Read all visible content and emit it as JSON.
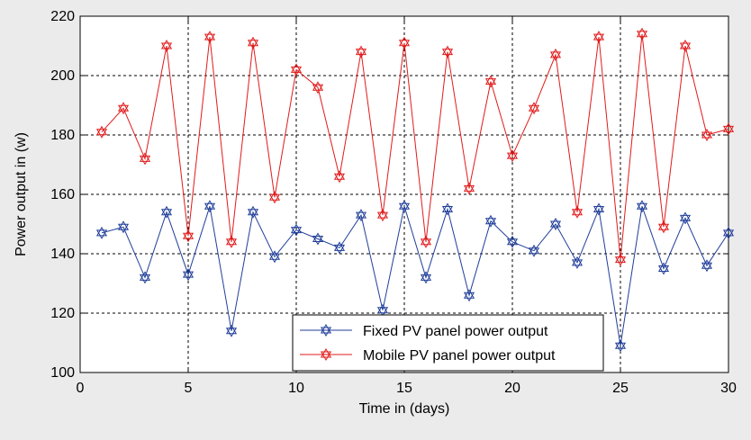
{
  "chart_data": {
    "type": "line",
    "xlabel": "Time in (days)",
    "ylabel": "Power output in (w)",
    "xlim": [
      0,
      30
    ],
    "ylim": [
      100,
      220
    ],
    "xticks": [
      0,
      5,
      10,
      15,
      20,
      25,
      30
    ],
    "yticks": [
      100,
      120,
      140,
      160,
      180,
      200,
      220
    ],
    "grid": true,
    "legend_position": "bottom-center",
    "x": [
      1,
      2,
      3,
      4,
      5,
      6,
      7,
      8,
      9,
      10,
      11,
      12,
      13,
      14,
      15,
      16,
      17,
      18,
      19,
      20,
      21,
      22,
      23,
      24,
      25,
      26,
      27,
      28,
      29,
      30
    ],
    "series": [
      {
        "name": "Fixed PV panel power output",
        "color": "#1f3d99",
        "marker": "hexagram-icon",
        "values": [
          147,
          149,
          132,
          154,
          133,
          156,
          114,
          154,
          139,
          148,
          145,
          142,
          153,
          121,
          156,
          132,
          155,
          126,
          151,
          144,
          141,
          150,
          137,
          155,
          109,
          156,
          135,
          152,
          136,
          147
        ]
      },
      {
        "name": "Mobile PV panel power output",
        "color": "#e11a1a",
        "marker": "hexagram-icon",
        "values": [
          181,
          189,
          172,
          210,
          146,
          213,
          144,
          211,
          159,
          202,
          196,
          166,
          208,
          153,
          211,
          144,
          208,
          162,
          198,
          173,
          189,
          207,
          154,
          213,
          138,
          214,
          149,
          210,
          180,
          182
        ]
      }
    ]
  }
}
